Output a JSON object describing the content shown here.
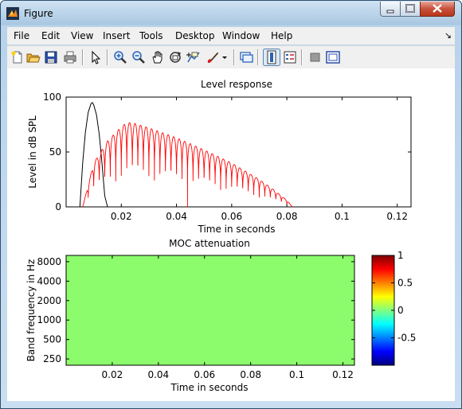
{
  "window": {
    "title": "Figure",
    "dock_glyph": "↘"
  },
  "menubar": {
    "items": [
      "File",
      "Edit",
      "View",
      "Insert",
      "Tools",
      "Desktop",
      "Window",
      "Help"
    ]
  },
  "toolbar": {
    "icons": [
      "new-figure-icon",
      "open-file-icon",
      "save-icon",
      "print-icon",
      "pointer-icon",
      "zoom-in-icon",
      "zoom-out-icon",
      "pan-icon",
      "rotate-3d-icon",
      "data-cursor-icon",
      "brush-icon",
      "brush-dropdown-icon",
      "link-plot-icon",
      "colorbar-icon",
      "legend-icon",
      "hide-plot-tools-icon",
      "show-plot-tools-icon"
    ]
  },
  "top_plot": {
    "title": "Level response",
    "xlabel": "Time in seconds",
    "ylabel": "Level in dB SPL",
    "xticks": [
      "0.02",
      "0.04",
      "0.06",
      "0.08",
      "0.1",
      "0.12"
    ],
    "yticks": [
      "0",
      "50",
      "100"
    ]
  },
  "bottom_plot": {
    "title": "MOC attenuation",
    "xlabel": "Time in seconds",
    "ylabel": "Band frequency in Hz",
    "xticks": [
      "0.02",
      "0.04",
      "0.06",
      "0.08",
      "0.1",
      "0.12"
    ],
    "yticks": [
      "8000",
      "4000",
      "2000",
      "1000",
      "500",
      "250"
    ],
    "fill_color": "#8cfc6c"
  },
  "colorbar": {
    "ticks": [
      "1",
      "0.5",
      "0",
      "-0.5"
    ]
  },
  "chart_data": [
    {
      "type": "line",
      "title": "Level response",
      "xlabel": "Time in seconds",
      "ylabel": "Level in dB SPL",
      "xlim": [
        0,
        0.125
      ],
      "ylim": [
        0,
        100
      ],
      "series": [
        {
          "color": "#000000",
          "x": [
            0.005,
            0.006,
            0.007,
            0.008,
            0.009,
            0.0095,
            0.01,
            0.011,
            0.012,
            0.013,
            0.014,
            0.015
          ],
          "y": [
            0,
            40,
            68,
            86,
            94,
            95,
            93,
            84,
            66,
            40,
            10,
            0
          ]
        },
        {
          "color": "#ff0000",
          "envelope_x": [
            0.006,
            0.01,
            0.015,
            0.02,
            0.022,
            0.025,
            0.03,
            0.04,
            0.05,
            0.06,
            0.07,
            0.075,
            0.08,
            0.082
          ],
          "envelope_y": [
            0,
            40,
            60,
            73,
            77,
            76,
            72,
            63,
            52,
            40,
            25,
            16,
            6,
            0
          ],
          "period": 0.002
        }
      ]
    },
    {
      "type": "heatmap",
      "title": "MOC attenuation",
      "xlabel": "Time in seconds",
      "ylabel": "Band frequency in Hz",
      "xlim": [
        0,
        0.125
      ],
      "ylim": [
        200,
        10000
      ],
      "value": 0,
      "clim": [
        -1,
        1
      ]
    }
  ]
}
